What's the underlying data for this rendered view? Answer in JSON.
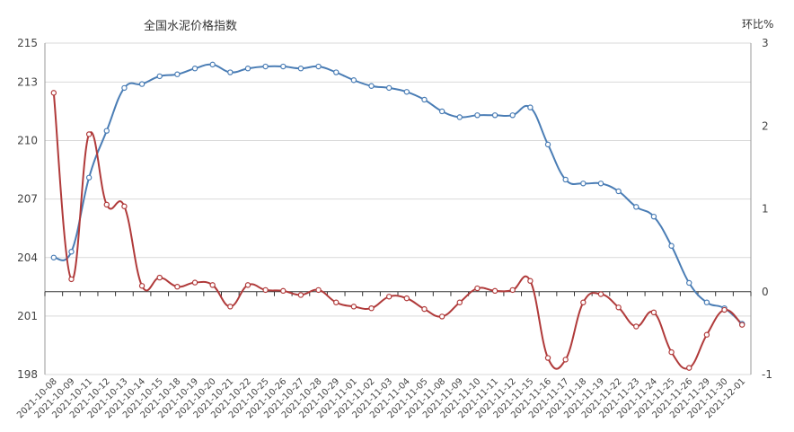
{
  "chart_data": {
    "type": "line",
    "title": "全国水泥价格指数",
    "right_axis_label": "环比%",
    "categories": [
      "2021-10-08",
      "2021-10-09",
      "2021-10-11",
      "2021-10-12",
      "2021-10-13",
      "2021-10-14",
      "2021-10-15",
      "2021-10-18",
      "2021-10-19",
      "2021-10-20",
      "2021-10-21",
      "2021-10-22",
      "2021-10-25",
      "2021-10-26",
      "2021-10-27",
      "2021-10-28",
      "2021-10-29",
      "2021-11-01",
      "2021-11-02",
      "2021-11-03",
      "2021-11-04",
      "2021-11-05",
      "2021-11-08",
      "2021-11-09",
      "2021-11-10",
      "2021-11-11",
      "2021-11-12",
      "2021-11-15",
      "2021-11-16",
      "2021-11-17",
      "2021-11-18",
      "2021-11-19",
      "2021-11-22",
      "2021-11-23",
      "2021-11-24",
      "2021-11-25",
      "2021-11-26",
      "2021-11-29",
      "2021-11-30",
      "2021-12-01"
    ],
    "left_axis": {
      "ylim": [
        198,
        215
      ],
      "ticks": [
        198,
        201,
        204,
        207,
        210,
        213,
        215
      ]
    },
    "right_axis": {
      "ylim": [
        -1,
        3
      ],
      "ticks": [
        -1,
        0,
        1,
        2,
        3
      ]
    },
    "grid": true,
    "series": [
      {
        "axis": "left",
        "color": "#4a7db5",
        "values": [
          204.0,
          204.3,
          208.1,
          210.5,
          212.7,
          212.9,
          213.3,
          213.4,
          213.7,
          213.9,
          213.5,
          213.7,
          213.8,
          213.8,
          213.7,
          213.8,
          213.5,
          213.1,
          212.8,
          212.7,
          212.5,
          212.1,
          211.5,
          211.2,
          211.3,
          211.3,
          211.3,
          211.7,
          209.8,
          208.0,
          207.8,
          207.8,
          207.4,
          206.6,
          206.1,
          204.6,
          202.7,
          201.7,
          201.4,
          200.6
        ]
      },
      {
        "axis": "right",
        "color": "#b03a3a",
        "values": [
          2.4,
          0.15,
          1.9,
          1.05,
          1.03,
          0.07,
          0.17,
          0.06,
          0.11,
          0.08,
          -0.18,
          0.08,
          0.02,
          0.01,
          -0.04,
          0.02,
          -0.13,
          -0.18,
          -0.2,
          -0.06,
          -0.08,
          -0.21,
          -0.3,
          -0.13,
          0.04,
          0.01,
          0.02,
          0.13,
          -0.8,
          -0.82,
          -0.13,
          -0.03,
          -0.19,
          -0.42,
          -0.25,
          -0.73,
          -0.92,
          -0.52,
          -0.22,
          -0.4
        ]
      }
    ]
  }
}
